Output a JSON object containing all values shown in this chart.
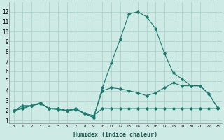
{
  "xlabel": "Humidex (Indice chaleur)",
  "ylabel": "",
  "bg_color": "#ceeae5",
  "grid_color": "#aacec8",
  "line_color": "#1a7a6e",
  "xlim": [
    -0.5,
    23.5
  ],
  "ylim": [
    0.7,
    13.0
  ],
  "xticks": [
    0,
    1,
    2,
    3,
    4,
    5,
    6,
    7,
    8,
    9,
    10,
    11,
    12,
    13,
    14,
    15,
    16,
    17,
    18,
    19,
    20,
    21,
    22,
    23
  ],
  "yticks": [
    1,
    2,
    3,
    4,
    5,
    6,
    7,
    8,
    9,
    10,
    11,
    12
  ],
  "series": [
    {
      "x": [
        0,
        1,
        2,
        3,
        4,
        5,
        6,
        7,
        8,
        9,
        10,
        11,
        12,
        13,
        14,
        15,
        16,
        17,
        18,
        19,
        20,
        21,
        22,
        23
      ],
      "y": [
        2.0,
        2.5,
        2.5,
        2.7,
        2.2,
        2.2,
        2.0,
        2.2,
        1.7,
        1.5,
        2.2,
        2.2,
        2.2,
        2.2,
        2.2,
        2.2,
        2.2,
        2.2,
        2.2,
        2.2,
        2.2,
        2.2,
        2.2,
        2.2
      ]
    },
    {
      "x": [
        0,
        1,
        2,
        3,
        4,
        5,
        6,
        7,
        8,
        9,
        10,
        11,
        12,
        13,
        14,
        15,
        16,
        17,
        18,
        19,
        20,
        21,
        22,
        23
      ],
      "y": [
        2.0,
        2.2,
        2.5,
        2.7,
        2.2,
        2.2,
        2.0,
        2.2,
        1.7,
        1.3,
        4.0,
        4.3,
        4.2,
        4.0,
        3.8,
        3.5,
        3.8,
        4.3,
        4.8,
        4.5,
        4.5,
        4.5,
        3.7,
        2.3
      ]
    },
    {
      "x": [
        0,
        1,
        2,
        3,
        4,
        5,
        6,
        7,
        8,
        9,
        10,
        11,
        12,
        13,
        14,
        15,
        16,
        17,
        18,
        19,
        20,
        21,
        22,
        23
      ],
      "y": [
        2.0,
        2.3,
        2.5,
        2.8,
        2.2,
        2.1,
        2.0,
        2.1,
        1.7,
        1.3,
        4.3,
        6.8,
        9.2,
        11.8,
        12.0,
        11.5,
        10.3,
        7.8,
        5.8,
        5.2,
        4.5,
        4.5,
        3.7,
        2.3
      ]
    }
  ]
}
